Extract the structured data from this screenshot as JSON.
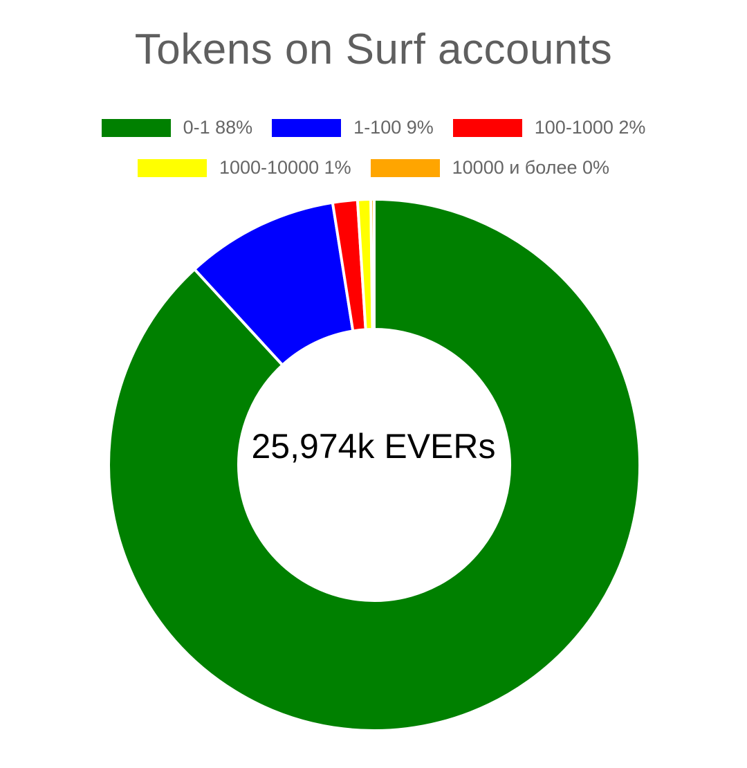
{
  "chart_data": {
    "type": "pie",
    "variant": "donut",
    "title": "Tokens on Surf accounts",
    "center_label": "25,974k EVERs",
    "legend_placement": "top",
    "slices": [
      {
        "label": "0-1 88%",
        "value": 88.0,
        "color": "#008000"
      },
      {
        "label": "1-100 9%",
        "value": 9.3,
        "color": "#0000ff"
      },
      {
        "label": "100-1000 2%",
        "value": 1.5,
        "color": "#ff0000"
      },
      {
        "label": "1000-10000 1%",
        "value": 0.8,
        "color": "#ffff00"
      },
      {
        "label": "10000 и более 0%",
        "value": 0.2,
        "color": "#ffa500"
      }
    ]
  }
}
